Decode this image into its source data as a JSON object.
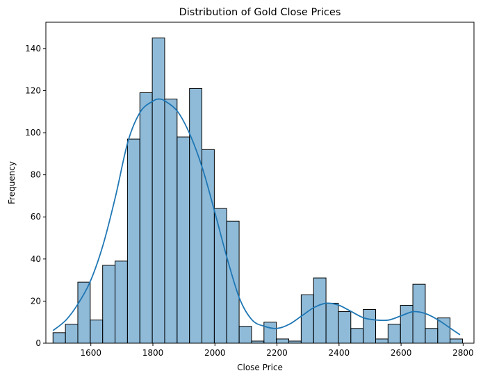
{
  "chart_data": {
    "type": "bar",
    "title": "Distribution of Gold Close Prices",
    "xlabel": "Close Price",
    "ylabel": "Frequency",
    "xlim": [
      1455,
      2835
    ],
    "ylim": [
      0,
      152.5
    ],
    "xticks": [
      1600,
      1800,
      2000,
      2200,
      2400,
      2600,
      2800
    ],
    "yticks": [
      0,
      20,
      40,
      60,
      80,
      100,
      120,
      140
    ],
    "bin_edges": [
      1478,
      1518,
      1558,
      1598,
      1638,
      1678,
      1718,
      1758,
      1798,
      1838,
      1878,
      1918,
      1958,
      1998,
      2038,
      2078,
      2118,
      2158,
      2198,
      2238,
      2278,
      2318,
      2358,
      2398,
      2438,
      2478,
      2518,
      2558,
      2598,
      2638,
      2678,
      2718,
      2758,
      2798
    ],
    "values": [
      5,
      9,
      29,
      11,
      37,
      39,
      97,
      119,
      145,
      116,
      98,
      121,
      92,
      64,
      58,
      8,
      1,
      10,
      2,
      1,
      23,
      31,
      19,
      15,
      7,
      16,
      2,
      9,
      18,
      28,
      7,
      12,
      2
    ],
    "kde": {
      "x": [
        1478,
        1520,
        1560,
        1600,
        1640,
        1680,
        1720,
        1760,
        1800,
        1820,
        1840,
        1880,
        1920,
        1960,
        2000,
        2040,
        2080,
        2120,
        2160,
        2200,
        2240,
        2280,
        2320,
        2360,
        2400,
        2440,
        2480,
        2520,
        2560,
        2600,
        2640,
        2680,
        2720,
        2760,
        2790
      ],
      "y": [
        6,
        11,
        19,
        30,
        47,
        70,
        96,
        110,
        115,
        116,
        115,
        110,
        99,
        83,
        62,
        40,
        21,
        11,
        8,
        7,
        9,
        13,
        17,
        19,
        18,
        15,
        12,
        11,
        11,
        13,
        15,
        14,
        11,
        7,
        4
      ]
    },
    "bar_color": "#1f77b4",
    "line_color": "#1f77b4",
    "grid": false,
    "legend": "none"
  }
}
